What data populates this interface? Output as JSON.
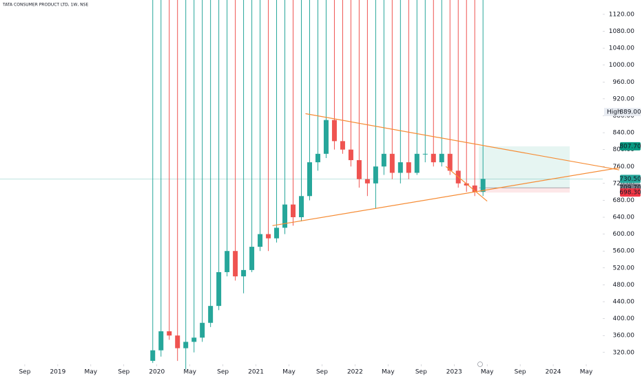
{
  "chart_data": {
    "type": "candlestick",
    "title": "TATA CONSUMER PRODUCT LTD, 1W, NSE",
    "x": [
      "2019-12",
      "2020-01",
      "2020-02",
      "2020-03",
      "2020-04",
      "2020-05",
      "2020-06",
      "2020-07",
      "2020-08",
      "2020-09",
      "2020-10",
      "2020-11",
      "2020-12",
      "2021-01",
      "2021-02",
      "2021-03",
      "2021-04",
      "2021-05",
      "2021-06",
      "2021-07",
      "2021-08",
      "2021-09",
      "2021-10",
      "2021-11",
      "2021-12",
      "2022-01",
      "2022-02",
      "2022-03",
      "2022-04",
      "2022-05",
      "2022-06",
      "2022-07",
      "2022-08",
      "2022-09",
      "2022-10",
      "2022-11",
      "2022-12",
      "2023-01",
      "2023-02",
      "2023-03",
      "2023-04"
    ],
    "open": [
      300,
      325,
      370,
      360,
      330,
      345,
      355,
      390,
      430,
      510,
      560,
      500,
      515,
      570,
      600,
      590,
      615,
      670,
      640,
      690,
      770,
      790,
      870,
      820,
      800,
      775,
      730,
      720,
      760,
      790,
      745,
      770,
      745,
      790,
      790,
      770,
      790,
      750,
      720,
      715,
      700
    ],
    "high": {
      "name": "High",
      "value": 889,
      "label": "889.00"
    },
    "low": [
      295,
      310,
      350,
      300,
      280,
      320,
      345,
      380,
      420,
      500,
      490,
      460,
      510,
      560,
      560,
      580,
      600,
      620,
      630,
      680,
      750,
      780,
      800,
      790,
      760,
      710,
      690,
      660,
      740,
      730,
      720,
      730,
      740,
      770,
      760,
      760,
      740,
      710,
      700,
      690,
      690
    ],
    "close": [
      325,
      370,
      360,
      330,
      345,
      355,
      390,
      430,
      510,
      560,
      500,
      515,
      570,
      600,
      590,
      615,
      670,
      640,
      690,
      770,
      790,
      870,
      820,
      800,
      775,
      730,
      720,
      760,
      790,
      745,
      770,
      745,
      790,
      790,
      770,
      790,
      750,
      720,
      715,
      700,
      730.5
    ],
    "up_color": "#26a69a",
    "down_color": "#ef5350",
    "xlim": [
      "2018-06",
      "2024-07"
    ],
    "xticks": [
      {
        "value": "2018-09",
        "label": "Sep"
      },
      {
        "value": "2019-01",
        "label": "2019"
      },
      {
        "value": "2019-05",
        "label": "May"
      },
      {
        "value": "2019-09",
        "label": "Sep"
      },
      {
        "value": "2020-01",
        "label": "2020"
      },
      {
        "value": "2020-05",
        "label": "May"
      },
      {
        "value": "2020-09",
        "label": "Sep"
      },
      {
        "value": "2021-01",
        "label": "2021"
      },
      {
        "value": "2021-05",
        "label": "May"
      },
      {
        "value": "2021-09",
        "label": "Sep"
      },
      {
        "value": "2022-01",
        "label": "2022"
      },
      {
        "value": "2022-05",
        "label": "May"
      },
      {
        "value": "2022-09",
        "label": "Sep"
      },
      {
        "value": "2023-01",
        "label": "2023"
      },
      {
        "value": "2023-05",
        "label": "May"
      },
      {
        "value": "2023-09",
        "label": "Sep"
      },
      {
        "value": "2024-01",
        "label": "2024"
      },
      {
        "value": "2024-05",
        "label": "May"
      }
    ],
    "ylim": [
      292,
      1154
    ],
    "yticks": [
      {
        "value": 320,
        "label": "320.00"
      },
      {
        "value": 360,
        "label": "360.00"
      },
      {
        "value": 400,
        "label": "400.00"
      },
      {
        "value": 440,
        "label": "440.00"
      },
      {
        "value": 480,
        "label": "480.00"
      },
      {
        "value": 520,
        "label": "520.00"
      },
      {
        "value": 560,
        "label": "560.00"
      },
      {
        "value": 600,
        "label": "600.00"
      },
      {
        "value": 640,
        "label": "640.00"
      },
      {
        "value": 680,
        "label": "680.00"
      },
      {
        "value": 720,
        "label": "720.00"
      },
      {
        "value": 760,
        "label": "760.00"
      },
      {
        "value": 800,
        "label": "800.00"
      },
      {
        "value": 840,
        "label": "840.00"
      },
      {
        "value": 880,
        "label": "880.00"
      },
      {
        "value": 920,
        "label": "920.00"
      },
      {
        "value": 960,
        "label": "960.00"
      },
      {
        "value": 1000,
        "label": "1000.00"
      },
      {
        "value": 1040,
        "label": "1040.00"
      },
      {
        "value": 1080,
        "label": "1080.00"
      },
      {
        "value": 1120,
        "label": "1120.00"
      }
    ],
    "last_price": {
      "value": 730.5,
      "label": "730.50",
      "color": "#26a69a"
    },
    "position": {
      "start": "2023-04",
      "end": "2024-03",
      "target": {
        "value": 807.7,
        "label": "807.70",
        "color": "#089981"
      },
      "entry": {
        "value": 709.7,
        "label": "709.70",
        "color": "#787b86"
      },
      "stop": {
        "value": 698.3,
        "label": "698.30",
        "color": "#f23645"
      }
    },
    "trend_color": "#f68b33",
    "trend_lines": [
      {
        "from": [
          "2021-07",
          885
        ],
        "to": [
          "2024-09",
          752
        ]
      },
      {
        "from": [
          "2021-03",
          620
        ],
        "to": [
          "2024-09",
          757
        ]
      },
      {
        "from": [
          "2022-12",
          760
        ],
        "to": [
          "2023-05",
          678
        ]
      }
    ]
  }
}
